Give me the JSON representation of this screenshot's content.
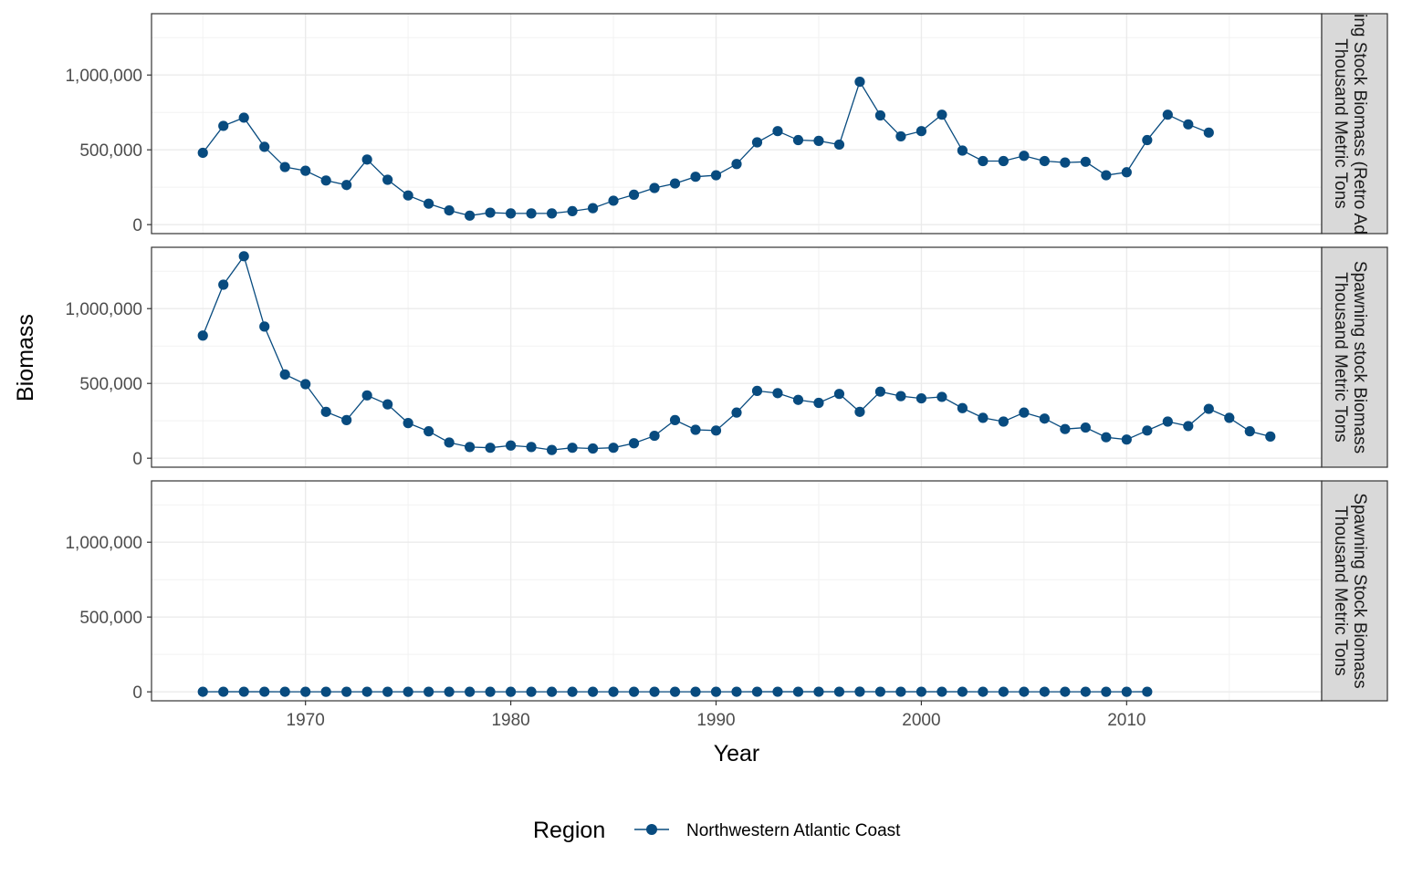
{
  "chart_data": {
    "type": "line",
    "xlabel": "Year",
    "ylabel": "Biomass",
    "x_ticks": [
      1970,
      1980,
      1990,
      2000,
      2010
    ],
    "y_ticks": [
      0,
      500000,
      1000000
    ],
    "y_tick_labels": [
      "0",
      "500,000",
      "1,000,000"
    ],
    "xlim": [
      1962.5,
      2019.5
    ],
    "ylim": [
      -60000,
      1410000
    ],
    "grid": true,
    "legend": {
      "title": "Region",
      "position": "bottom"
    },
    "series_color": "#084b7f",
    "series": [
      {
        "name": "Northwestern Atlantic Coast"
      }
    ],
    "panels": [
      {
        "strip": [
          "Spawning Stock Biomass (Retro Adjusted)",
          "Thousand Metric Tons"
        ],
        "x": [
          1965,
          1966,
          1967,
          1968,
          1969,
          1970,
          1971,
          1972,
          1973,
          1974,
          1975,
          1976,
          1977,
          1978,
          1979,
          1980,
          1981,
          1982,
          1983,
          1984,
          1985,
          1986,
          1987,
          1988,
          1989,
          1990,
          1991,
          1992,
          1993,
          1994,
          1995,
          1996,
          1997,
          1998,
          1999,
          2000,
          2001,
          2002,
          2003,
          2004,
          2005,
          2006,
          2007,
          2008,
          2009,
          2010,
          2011,
          2012,
          2013,
          2014
        ],
        "values": [
          480000,
          660000,
          715000,
          520000,
          385000,
          360000,
          295000,
          265000,
          435000,
          300000,
          195000,
          140000,
          95000,
          60000,
          80000,
          75000,
          75000,
          75000,
          90000,
          110000,
          160000,
          200000,
          245000,
          275000,
          320000,
          330000,
          405000,
          550000,
          625000,
          565000,
          560000,
          535000,
          955000,
          730000,
          590000,
          625000,
          735000,
          495000,
          425000,
          425000,
          460000,
          425000,
          415000,
          420000,
          330000,
          350000,
          565000,
          735000,
          670000,
          615000
        ]
      },
      {
        "strip": [
          "Spawning stock Biomass",
          "Thousand Metric Tons"
        ],
        "x": [
          1965,
          1966,
          1967,
          1968,
          1969,
          1970,
          1971,
          1972,
          1973,
          1974,
          1975,
          1976,
          1977,
          1978,
          1979,
          1980,
          1981,
          1982,
          1983,
          1984,
          1985,
          1986,
          1987,
          1988,
          1989,
          1990,
          1991,
          1992,
          1993,
          1994,
          1995,
          1996,
          1997,
          1998,
          1999,
          2000,
          2001,
          2002,
          2003,
          2004,
          2005,
          2006,
          2007,
          2008,
          2009,
          2010,
          2011,
          2012,
          2013,
          2014,
          2015,
          2016,
          2017
        ],
        "values": [
          820000,
          1160000,
          1350000,
          880000,
          560000,
          495000,
          310000,
          255000,
          420000,
          360000,
          235000,
          180000,
          105000,
          75000,
          70000,
          85000,
          75000,
          55000,
          70000,
          65000,
          70000,
          100000,
          150000,
          255000,
          190000,
          185000,
          305000,
          450000,
          435000,
          390000,
          370000,
          430000,
          310000,
          445000,
          415000,
          400000,
          410000,
          335000,
          270000,
          245000,
          305000,
          265000,
          195000,
          205000,
          140000,
          125000,
          185000,
          245000,
          215000,
          330000,
          270000,
          180000,
          145000
        ]
      },
      {
        "strip": [
          "Spawning Stock Biomass",
          "Thousand Metric Tons"
        ],
        "x": [
          1965,
          1966,
          1967,
          1968,
          1969,
          1970,
          1971,
          1972,
          1973,
          1974,
          1975,
          1976,
          1977,
          1978,
          1979,
          1980,
          1981,
          1982,
          1983,
          1984,
          1985,
          1986,
          1987,
          1988,
          1989,
          1990,
          1991,
          1992,
          1993,
          1994,
          1995,
          1996,
          1997,
          1998,
          1999,
          2000,
          2001,
          2002,
          2003,
          2004,
          2005,
          2006,
          2007,
          2008,
          2009,
          2010,
          2011
        ],
        "values": [
          400,
          600,
          700,
          500,
          380,
          360,
          300,
          260,
          430,
          300,
          200,
          140,
          95,
          60,
          80,
          75,
          75,
          75,
          90,
          110,
          160,
          200,
          245,
          275,
          320,
          330,
          405,
          550,
          625,
          565,
          560,
          535,
          955,
          730,
          590,
          625,
          735,
          495,
          425,
          425,
          460,
          425,
          415,
          420,
          330,
          350,
          565
        ]
      }
    ]
  }
}
